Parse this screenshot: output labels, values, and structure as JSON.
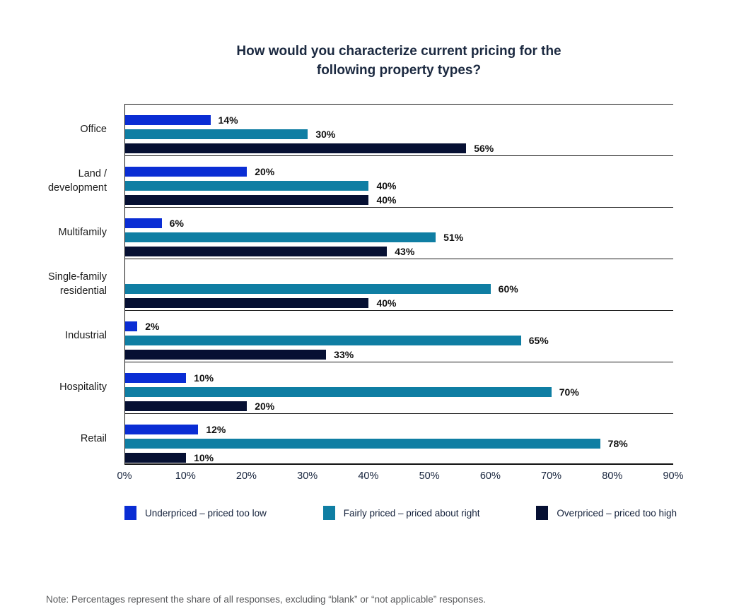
{
  "chart_data": {
    "type": "bar",
    "orientation": "horizontal",
    "title": "How would you characterize current pricing for the\nfollowing property types?",
    "categories": [
      "Office",
      "Land / development",
      "Multifamily",
      "Single-family residential",
      "Industrial",
      "Hospitality",
      "Retail"
    ],
    "category_display": [
      "Office",
      "Land /\ndevelopment",
      "Multifamily",
      "Single-family\nresidential",
      "Industrial",
      "Hospitality",
      "Retail"
    ],
    "series": [
      {
        "name": "Underpriced – priced too low",
        "key": "underpriced",
        "color": "#0a2dd4",
        "values": [
          14,
          20,
          6,
          0,
          2,
          10,
          12
        ]
      },
      {
        "name": "Fairly priced – priced about right",
        "key": "fairly-priced",
        "color": "#0f7ea3",
        "values": [
          30,
          40,
          51,
          60,
          65,
          70,
          78
        ]
      },
      {
        "name": "Overpriced – priced too high",
        "key": "overpriced",
        "color": "#061033",
        "values": [
          56,
          40,
          43,
          40,
          33,
          20,
          10
        ]
      }
    ],
    "value_suffix": "%",
    "xlim": [
      0,
      90
    ],
    "x_ticks": [
      "0%",
      "10%",
      "20%",
      "30%",
      "40%",
      "50%",
      "60%",
      "70%",
      "80%",
      "90%"
    ],
    "legend_position": "bottom",
    "grid": "horizontal-category-dividers",
    "data_labels": true
  },
  "note": "Note: Percentages represent the share of all responses, excluding “blank” or “not applicable” responses."
}
